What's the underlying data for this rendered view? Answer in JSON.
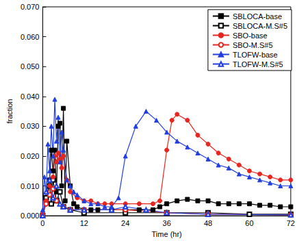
{
  "chart_data": {
    "type": "line",
    "x_label": "Time (hr)",
    "y_label": "fraction",
    "xlim": [
      0,
      72
    ],
    "xticks": [
      0,
      12,
      24,
      36,
      48,
      60,
      72
    ],
    "ylim": [
      0,
      0.07
    ],
    "yticks": [
      {
        "value": 0,
        "label": "0.000"
      },
      {
        "value": 0.01,
        "label": "0.010"
      },
      {
        "value": 0.02,
        "label": "0.020"
      },
      {
        "value": 0.03,
        "label": "0.030"
      },
      {
        "value": 0.04,
        "label": "0.040"
      },
      {
        "value": 0.05,
        "label": "0.050"
      },
      {
        "value": 0.06,
        "label": "0.060"
      },
      {
        "value": 0.07,
        "label": "0.070"
      }
    ],
    "grid": false,
    "legend": "upper right",
    "series": [
      {
        "name": "SBLOCA-base",
        "color": "#000000",
        "marker": "square",
        "x": [
          0,
          1,
          2,
          2.5,
          3,
          3.5,
          4,
          4.5,
          5,
          5.5,
          6,
          6.5,
          7,
          8,
          9,
          10,
          12,
          14,
          16,
          20,
          24,
          28,
          32,
          34,
          36,
          39,
          42,
          45,
          48,
          51,
          54,
          57,
          60,
          63,
          66,
          69,
          72
        ],
        "values": [
          0,
          0.005,
          0.012,
          0.022,
          0.015,
          0.022,
          0.008,
          0.03,
          0.031,
          0.01,
          0.036,
          0.005,
          0.025,
          0.01,
          0.004,
          0.003,
          0.002,
          0.002,
          0.002,
          0.002,
          0.002,
          0.002,
          0.002,
          0.003,
          0.004,
          0.005,
          0.0055,
          0.005,
          0.005,
          0.004,
          0.004,
          0.004,
          0.004,
          0.0035,
          0.0035,
          0.003,
          0.003
        ]
      },
      {
        "name": "SBLOCA-M.S#5",
        "color": "#000000",
        "marker": "open_square",
        "x": [
          0,
          1,
          2,
          2.5,
          3,
          4,
          5,
          6,
          8,
          12,
          24,
          36,
          48,
          60,
          72
        ],
        "values": [
          0,
          0.006,
          0.01,
          0.004,
          0.012,
          0.005,
          0.008,
          0.003,
          0.002,
          0.001,
          0.001,
          0.001,
          0.001,
          0.0005,
          0.0005
        ]
      },
      {
        "name": "SBO-base",
        "color": "#e8251f",
        "marker": "circle",
        "x": [
          0,
          1,
          2,
          3,
          3.5,
          4,
          4.5,
          5,
          5.5,
          6,
          7,
          8,
          10,
          12,
          14,
          16,
          18,
          20,
          24,
          28,
          32,
          34,
          36,
          37.5,
          39,
          42,
          45,
          48,
          51,
          54,
          57,
          60,
          63,
          66,
          69,
          72
        ],
        "values": [
          0.001,
          0.005,
          0.01,
          0.013,
          0.02,
          0.018,
          0.021,
          0.019,
          0.016,
          0.02,
          0.012,
          0.008,
          0.006,
          0.005,
          0.005,
          0.004,
          0.004,
          0.004,
          0.004,
          0.004,
          0.004,
          0.005,
          0.022,
          0.032,
          0.034,
          0.032,
          0.027,
          0.024,
          0.021,
          0.019,
          0.017,
          0.015,
          0.014,
          0.013,
          0.012,
          0.012
        ]
      },
      {
        "name": "SBO-M.S#5",
        "color": "#e8251f",
        "marker": "open_circle",
        "x": [
          0,
          1,
          2,
          3,
          4,
          6,
          8,
          12,
          24,
          36,
          48,
          72
        ],
        "values": [
          0,
          0.004,
          0.007,
          0.009,
          0.005,
          0.003,
          0.002,
          0.002,
          0.002,
          0.001,
          0.0005,
          0.0003
        ]
      },
      {
        "name": "TLOFW-base",
        "color": "#1f3fe0",
        "marker": "triangle",
        "x": [
          0,
          0.5,
          1,
          1.5,
          2,
          2.5,
          3,
          3.5,
          4,
          4.5,
          5,
          5.5,
          6,
          7,
          8,
          9,
          10,
          12,
          14,
          16,
          18,
          20,
          22,
          24,
          27,
          30,
          33,
          36,
          39,
          42,
          45,
          48,
          51,
          54,
          57,
          60,
          63,
          66,
          69,
          72
        ],
        "values": [
          0.002,
          0.013,
          0.008,
          0.024,
          0.015,
          0.03,
          0.02,
          0.039,
          0.025,
          0.033,
          0.018,
          0.028,
          0.022,
          0.012,
          0.01,
          0.008,
          0.007,
          0.005,
          0.004,
          0.004,
          0.003,
          0.003,
          0.006,
          0.02,
          0.03,
          0.035,
          0.032,
          0.028,
          0.025,
          0.023,
          0.021,
          0.019,
          0.017,
          0.016,
          0.014,
          0.013,
          0.012,
          0.011,
          0.01,
          0.01
        ]
      },
      {
        "name": "TLOFW-M.S#5",
        "color": "#1f3fe0",
        "marker": "open_triangle",
        "x": [
          0,
          1,
          2,
          3,
          4,
          5,
          6,
          8,
          12,
          20,
          24,
          30,
          36,
          48,
          72
        ],
        "values": [
          0,
          0.008,
          0.012,
          0.006,
          0.01,
          0.004,
          0.003,
          0.002,
          0.002,
          0.002,
          0.003,
          0.002,
          0.001,
          0.0005,
          0.0003
        ]
      }
    ]
  }
}
